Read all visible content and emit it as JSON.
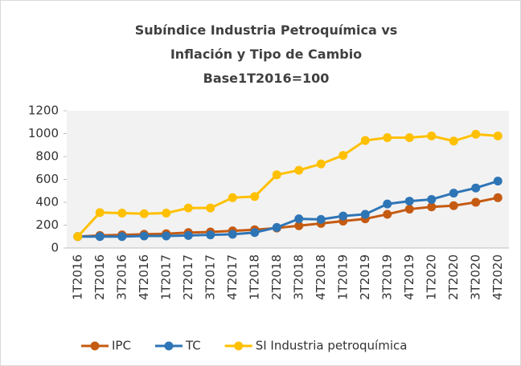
{
  "chart_data": {
    "type": "line",
    "title": "Subíndice Industria Petroquímica vs Inflación y Tipo de Cambio",
    "subtitle": "Base1T2016=100",
    "categories": [
      "1T2016",
      "2T2016",
      "3T2016",
      "4T2016",
      "1T2017",
      "2T2017",
      "3T2017",
      "4T2017",
      "1T2018",
      "2T2018",
      "3T2018",
      "4T2018",
      "1T2019",
      "2T2019",
      "3T2019",
      "4T2019",
      "1T2020",
      "2T2020",
      "3T2020",
      "4T2020"
    ],
    "series": [
      {
        "name": "IPC",
        "color": "#c55a11",
        "values": [
          100,
          110,
          115,
          120,
          125,
          135,
          140,
          150,
          160,
          175,
          195,
          215,
          235,
          255,
          295,
          340,
          360,
          370,
          400,
          440
        ]
      },
      {
        "name": "TC",
        "color": "#2e75b6",
        "values": [
          100,
          100,
          100,
          105,
          105,
          110,
          115,
          120,
          135,
          180,
          255,
          250,
          280,
          295,
          385,
          410,
          425,
          480,
          525,
          585
        ]
      },
      {
        "name": "SI Industria petroquímica",
        "color": "#ffc000",
        "values": [
          100,
          310,
          305,
          300,
          305,
          350,
          350,
          440,
          450,
          640,
          680,
          735,
          810,
          940,
          965,
          965,
          980,
          935,
          995,
          980
        ]
      }
    ],
    "ylim": [
      0,
      1200
    ],
    "yticks": [
      0,
      200,
      400,
      600,
      800,
      1000,
      1200
    ],
    "legend": "bottom"
  }
}
